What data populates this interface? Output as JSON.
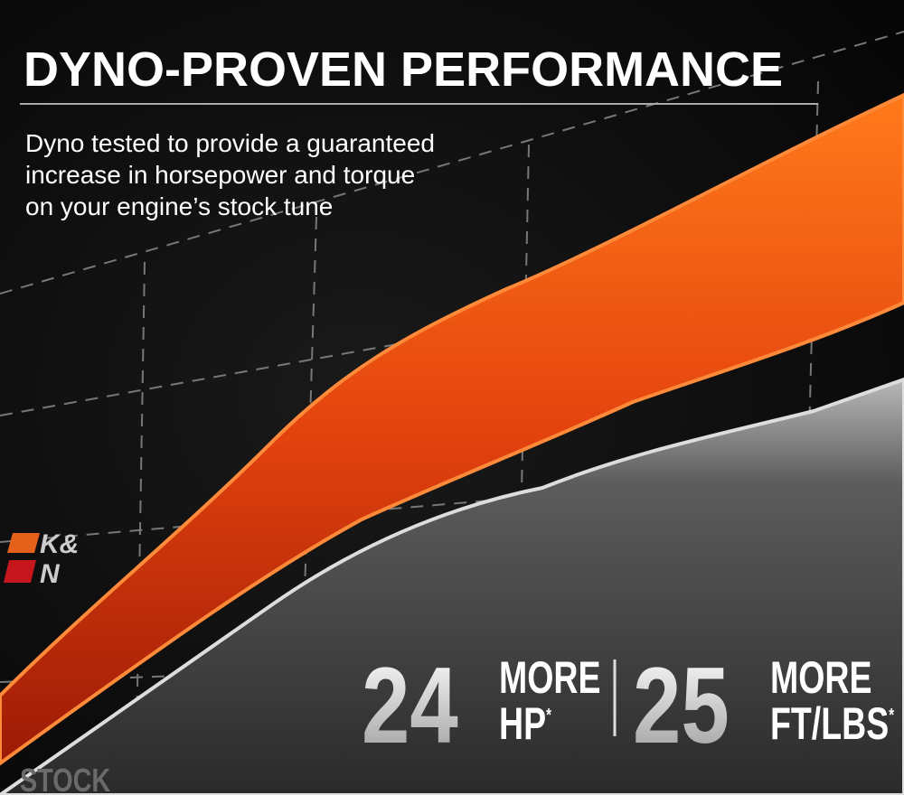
{
  "header": {
    "title": "DYNO-PROVEN PERFORMANCE",
    "description": [
      "Dyno tested to provide a guaranteed",
      "increase in horsepower and torque",
      "on your engine’s stock tune"
    ]
  },
  "logo": {
    "line1": "K&",
    "line2": "N"
  },
  "stats": [
    {
      "number": "24",
      "label": "MORE",
      "unit": "HP",
      "note": "*"
    },
    {
      "number": "25",
      "label": "MORE",
      "unit": "FT/LBS",
      "note": "*"
    }
  ],
  "baseline_label": "STOCK"
}
